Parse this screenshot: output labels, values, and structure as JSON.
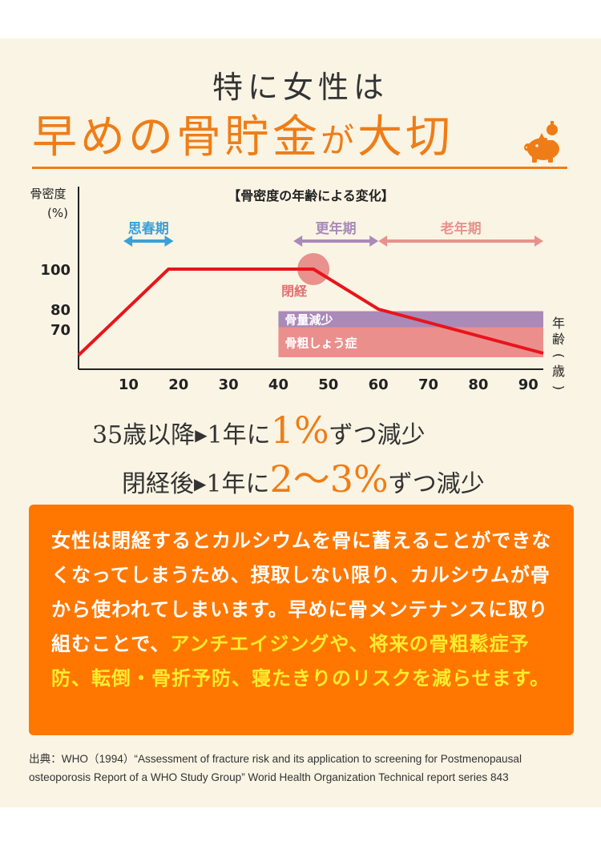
{
  "heading": {
    "line1": "特に女性は",
    "line2_a": "早めの骨貯金",
    "line2_b": "が",
    "line2_c": "大切"
  },
  "chart_data": {
    "type": "line",
    "title": "【骨密度の年齢による変化】",
    "ylabel_line1": "骨密度",
    "ylabel_line2": "(%)",
    "xlabel": "年齢(歳)",
    "xlabel_chars": [
      "年",
      "齢",
      "(",
      "歳",
      ")"
    ],
    "x_ticks": [
      10,
      20,
      30,
      40,
      50,
      60,
      70,
      80,
      90
    ],
    "y_ticks": [
      70,
      80,
      100
    ],
    "xlim": [
      0,
      93
    ],
    "ylim": [
      50,
      100
    ],
    "series": [
      {
        "values": [
          [
            0,
            57
          ],
          [
            18,
            100
          ],
          [
            47,
            100
          ],
          [
            60,
            80
          ],
          [
            93,
            58
          ]
        ],
        "color": "#e8151b"
      }
    ],
    "periods": [
      {
        "label": "思春期",
        "start": 9,
        "end": 19,
        "color": "#3aa0d8"
      },
      {
        "label": "更年期",
        "start": 43,
        "end": 60,
        "color": "#a98ab8"
      },
      {
        "label": "老年期",
        "start": 60,
        "end": 93,
        "color": "#e8928e"
      }
    ],
    "bands": [
      {
        "label": "骨量減少",
        "start": 40,
        "end": 93,
        "y_top": 79,
        "y_bottom": 71,
        "color": "#a98ab8"
      },
      {
        "label": "骨粗しょう症",
        "start": 40,
        "end": 93,
        "y_top": 71,
        "y_bottom": 56,
        "color": "#eb8f8d"
      }
    ],
    "annotation": {
      "label": "閉経",
      "x": 47,
      "y": 100,
      "color": "#e27070"
    }
  },
  "stats": [
    {
      "prefix": "35歳以降",
      "arrow": "▶",
      "mid": "1年に",
      "value": "1%",
      "suffix": "ずつ減少"
    },
    {
      "prefix": "閉経後",
      "arrow": "▶",
      "mid": "1年に",
      "value": "2〜3%",
      "suffix": "ずつ減少"
    }
  ],
  "callout": {
    "text_white": "女性は閉経するとカルシウムを骨に蓄えることができなくなってしまうため、摂取しない限り、カルシウムが骨から使われてしまいます。早めに骨メンテナンスに取り組むことで、",
    "text_yellow": "アンチエイジングや、将来の骨粗鬆症予防、転倒・骨折予防、寝たきりのリスクを減らせます。",
    "bg_color": "#ff7700",
    "highlight_color": "#ffec2e"
  },
  "source": "出典：WHO（1994）“Assessment of fracture risk and its application to screening for Postmenopausal osteoporosis Report of a WHO Study Group” Worid Health Organization Technical report series 843",
  "colors": {
    "accent": "#ef7d17",
    "panel": "#faf4e4"
  }
}
